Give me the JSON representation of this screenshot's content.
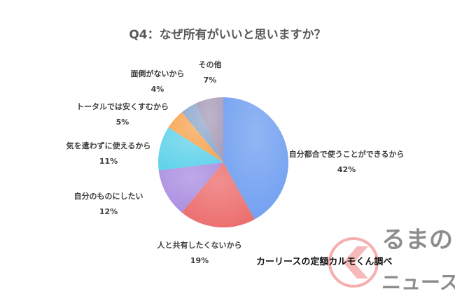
{
  "chart_data": {
    "type": "pie",
    "title": "Q4：なぜ所有がいいと思いますか？",
    "start": "top",
    "direction": "clockwise",
    "slices": [
      {
        "label": "自分都合で使うことができるから",
        "value": 42,
        "value_label": "42%",
        "color": "#6f9ef0"
      },
      {
        "label": "人と共有したくないから",
        "value": 19,
        "value_label": "19%",
        "color": "#ec6b6b"
      },
      {
        "label": "自分のものにしたい",
        "value": 12,
        "value_label": "12%",
        "color": "#a98ce0"
      },
      {
        "label": "気を遣わずに使えるから",
        "value": 11,
        "value_label": "11%",
        "color": "#5fd2ea"
      },
      {
        "label": "トータルでは安くすむから",
        "value": 5,
        "value_label": "5%",
        "color": "#f7a552"
      },
      {
        "label": "面倒がないから",
        "value": 4,
        "value_label": "4%",
        "color": "#8ea8cc"
      },
      {
        "label": "その他",
        "value": 7,
        "value_label": "7%",
        "color": "#a89cb8"
      }
    ]
  },
  "source": "カーリースの定額カルモくん調べ",
  "logo": {
    "text_top": "るまの",
    "text_bottom": "ニュース",
    "color": "#f08080"
  }
}
